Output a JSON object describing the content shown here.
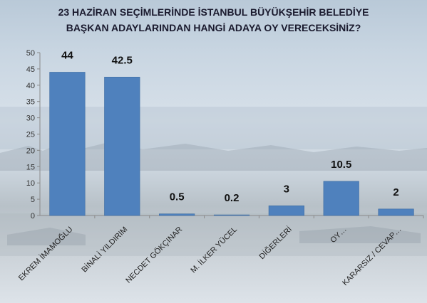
{
  "chart_data": {
    "type": "bar",
    "title": "23 HAZİRAN SEÇİMLERİNDE İSTANBUL BÜYÜKŞEHİR BELEDİYE",
    "subtitle": "BAŞKAN ADAYLARINDAN HANGİ ADAYA OY VERECEKSİNİZ?",
    "categories": [
      "EKREM İMAMOĞLU",
      "BİNALİ YILDIRIM",
      "NECDET GÖKÇINAR",
      "M. İLKER YÜCEL",
      "DİĞERLERİ",
      "OY…",
      "KARARSIZ / CEVAP…"
    ],
    "values": [
      44,
      42.5,
      0.5,
      0.2,
      3,
      10.5,
      2
    ],
    "value_labels": [
      "44",
      "42.5",
      "0.5",
      "0.2",
      "3",
      "10.5",
      "2"
    ],
    "ylim": [
      0,
      50
    ],
    "yticks": [
      0,
      5,
      10,
      15,
      20,
      25,
      30,
      35,
      40,
      45,
      50
    ],
    "xlabel": "",
    "ylabel": "",
    "grid": false,
    "bar_color": "#4f81bd",
    "bar_edge_color": "#3b6aa0"
  }
}
